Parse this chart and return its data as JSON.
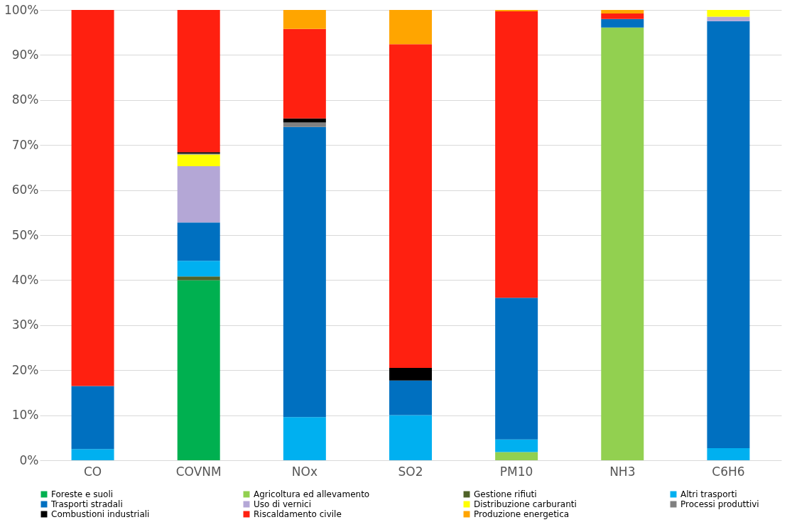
{
  "chart_data": {
    "type": "bar",
    "stacked": true,
    "categories": [
      "CO",
      "COVNM",
      "NOx",
      "SO2",
      "PM10",
      "NH3",
      "C6H6"
    ],
    "series": [
      {
        "name": "Foreste e suoli",
        "color": "#00b050",
        "values": [
          0,
          40,
          0,
          0,
          0,
          0,
          0
        ]
      },
      {
        "name": "Agricoltura ed allevamento",
        "color": "#92d050",
        "values": [
          0,
          0,
          0,
          0,
          1.8,
          96.1,
          0
        ]
      },
      {
        "name": "Gestione rifiuti",
        "color": "#4f6228",
        "values": [
          0,
          0.8,
          0,
          0,
          0,
          0,
          0
        ]
      },
      {
        "name": "Altri trasporti",
        "color": "#00b0f0",
        "values": [
          2.5,
          3.5,
          9.6,
          10,
          2.8,
          0,
          2.7
        ]
      },
      {
        "name": "Trasporti stradali",
        "color": "#0070c0",
        "values": [
          14,
          8.5,
          64.4,
          7.7,
          31.5,
          1.9,
          94.8
        ]
      },
      {
        "name": "Uso di vernici",
        "color": "#b4a7d6",
        "values": [
          0,
          12.5,
          0,
          0,
          0,
          0,
          1.0
        ]
      },
      {
        "name": "Distribuzione carburanti",
        "color": "#ffff00",
        "values": [
          0,
          2.6,
          0,
          0,
          0,
          0,
          1.5
        ]
      },
      {
        "name": "Processi produttivi",
        "color": "#808080",
        "values": [
          0,
          0.2,
          1.0,
          0,
          0,
          0,
          0
        ]
      },
      {
        "name": "Combustioni industriali",
        "color": "#000000",
        "values": [
          0,
          0.3,
          0.9,
          2.8,
          0,
          0,
          0
        ]
      },
      {
        "name": "Riscaldamento civile",
        "color": "#ff2010",
        "values": [
          83.5,
          31.6,
          19.9,
          71.9,
          63.6,
          1.2,
          0
        ]
      },
      {
        "name": "Produzione energetica",
        "color": "#ffa500",
        "values": [
          0,
          0,
          4.2,
          7.6,
          0.3,
          0.8,
          0
        ]
      }
    ],
    "ylim": [
      0,
      100
    ],
    "yticks": [
      {
        "value": 0,
        "label": "0%"
      },
      {
        "value": 10,
        "label": "10%"
      },
      {
        "value": 20,
        "label": "20%"
      },
      {
        "value": 30,
        "label": "30%"
      },
      {
        "value": 40,
        "label": "40%"
      },
      {
        "value": 50,
        "label": "50%"
      },
      {
        "value": 60,
        "label": "60%"
      },
      {
        "value": 70,
        "label": "70%"
      },
      {
        "value": 80,
        "label": "80%"
      },
      {
        "value": 90,
        "label": "90%"
      },
      {
        "value": 100,
        "label": "100%"
      }
    ],
    "grid": "y",
    "legend": "bottom"
  }
}
